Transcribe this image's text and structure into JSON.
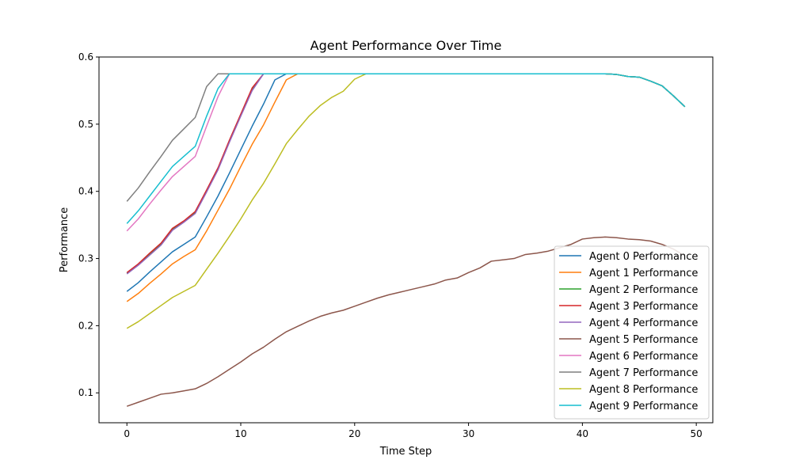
{
  "chart_data": {
    "type": "line",
    "title": "Agent Performance Over Time",
    "xlabel": "Time Step",
    "ylabel": "Performance",
    "xlim": [
      -2.45,
      51.45
    ],
    "ylim": [
      0.0555,
      0.6
    ],
    "xticks": [
      0,
      10,
      20,
      30,
      40,
      50
    ],
    "yticks": [
      0.1,
      0.2,
      0.3,
      0.4,
      0.5,
      0.6
    ],
    "xtick_labels": [
      "0",
      "10",
      "20",
      "30",
      "40",
      "50"
    ],
    "ytick_labels": [
      "0.1",
      "0.2",
      "0.3",
      "0.4",
      "0.5",
      "0.6"
    ],
    "grid": false,
    "legend_position": "lower-right",
    "x": [
      0,
      1,
      2,
      3,
      4,
      5,
      6,
      7,
      8,
      9,
      10,
      11,
      12,
      13,
      14,
      15,
      16,
      17,
      18,
      19,
      20,
      21,
      22,
      23,
      24,
      25,
      26,
      27,
      28,
      29,
      30,
      31,
      32,
      33,
      34,
      35,
      36,
      37,
      38,
      39,
      40,
      41,
      42,
      43,
      44,
      45,
      46,
      47,
      48,
      49
    ],
    "series": [
      {
        "name": "Agent 0 Performance",
        "color": "#1f77b4",
        "values": [
          0.251,
          0.264,
          0.28,
          0.295,
          0.31,
          0.321,
          0.332,
          0.362,
          0.393,
          0.427,
          0.462,
          0.497,
          0.53,
          0.566,
          0.575,
          0.575,
          0.575,
          0.575,
          0.575,
          0.575,
          0.575,
          0.575,
          0.575,
          0.575,
          0.575,
          0.575,
          0.575,
          0.575,
          0.575,
          0.575,
          0.575,
          0.575,
          0.575,
          0.575,
          0.575,
          0.575,
          0.575,
          0.575,
          0.575,
          0.575,
          0.575,
          0.575,
          0.575,
          0.574,
          0.571,
          0.57,
          0.564,
          0.557,
          0.542,
          0.526
        ]
      },
      {
        "name": "Agent 1 Performance",
        "color": "#ff7f0e",
        "values": [
          0.236,
          0.248,
          0.263,
          0.277,
          0.292,
          0.303,
          0.313,
          0.341,
          0.372,
          0.403,
          0.437,
          0.47,
          0.499,
          0.533,
          0.566,
          0.575,
          0.575,
          0.575,
          0.575,
          0.575,
          0.575,
          0.575,
          0.575,
          0.575,
          0.575,
          0.575,
          0.575,
          0.575,
          0.575,
          0.575,
          0.575,
          0.575,
          0.575,
          0.575,
          0.575,
          0.575,
          0.575,
          0.575,
          0.575,
          0.575,
          0.575,
          0.575,
          0.575,
          0.574,
          0.571,
          0.57,
          0.564,
          0.557,
          0.542,
          0.526
        ]
      },
      {
        "name": "Agent 2 Performance",
        "color": "#2ca02c",
        "values": [
          0.278,
          0.291,
          0.306,
          0.321,
          0.344,
          0.355,
          0.368,
          0.4,
          0.433,
          0.475,
          0.514,
          0.552,
          0.575,
          0.575,
          0.575,
          0.575,
          0.575,
          0.575,
          0.575,
          0.575,
          0.575,
          0.575,
          0.575,
          0.575,
          0.575,
          0.575,
          0.575,
          0.575,
          0.575,
          0.575,
          0.575,
          0.575,
          0.575,
          0.575,
          0.575,
          0.575,
          0.575,
          0.575,
          0.575,
          0.575,
          0.575,
          0.575,
          0.575,
          0.574,
          0.571,
          0.57,
          0.564,
          0.557,
          0.542,
          0.526
        ]
      },
      {
        "name": "Agent 3 Performance",
        "color": "#d62728",
        "values": [
          0.279,
          0.292,
          0.308,
          0.323,
          0.345,
          0.356,
          0.37,
          0.402,
          0.435,
          0.476,
          0.515,
          0.554,
          0.575,
          0.575,
          0.575,
          0.575,
          0.575,
          0.575,
          0.575,
          0.575,
          0.575,
          0.575,
          0.575,
          0.575,
          0.575,
          0.575,
          0.575,
          0.575,
          0.575,
          0.575,
          0.575,
          0.575,
          0.575,
          0.575,
          0.575,
          0.575,
          0.575,
          0.575,
          0.575,
          0.575,
          0.575,
          0.575,
          0.575,
          0.574,
          0.571,
          0.57,
          0.564,
          0.557,
          0.542,
          0.526
        ]
      },
      {
        "name": "Agent 4 Performance",
        "color": "#9467bd",
        "values": [
          0.277,
          0.29,
          0.305,
          0.32,
          0.342,
          0.354,
          0.367,
          0.399,
          0.432,
          0.473,
          0.512,
          0.55,
          0.575,
          0.575,
          0.575,
          0.575,
          0.575,
          0.575,
          0.575,
          0.575,
          0.575,
          0.575,
          0.575,
          0.575,
          0.575,
          0.575,
          0.575,
          0.575,
          0.575,
          0.575,
          0.575,
          0.575,
          0.575,
          0.575,
          0.575,
          0.575,
          0.575,
          0.575,
          0.575,
          0.575,
          0.575,
          0.575,
          0.575,
          0.574,
          0.571,
          0.57,
          0.564,
          0.557,
          0.542,
          0.526
        ]
      },
      {
        "name": "Agent 5 Performance",
        "color": "#8c564b",
        "values": [
          0.08,
          0.086,
          0.092,
          0.098,
          0.1,
          0.103,
          0.106,
          0.114,
          0.124,
          0.135,
          0.146,
          0.158,
          0.168,
          0.18,
          0.191,
          0.199,
          0.207,
          0.214,
          0.219,
          0.223,
          0.229,
          0.235,
          0.241,
          0.246,
          0.25,
          0.254,
          0.258,
          0.262,
          0.268,
          0.271,
          0.279,
          0.286,
          0.296,
          0.298,
          0.3,
          0.306,
          0.308,
          0.311,
          0.316,
          0.321,
          0.329,
          0.331,
          0.332,
          0.331,
          0.329,
          0.328,
          0.326,
          0.321,
          0.314,
          0.304
        ]
      },
      {
        "name": "Agent 6 Performance",
        "color": "#e377c2",
        "values": [
          0.341,
          0.359,
          0.381,
          0.402,
          0.422,
          0.437,
          0.452,
          0.497,
          0.541,
          0.575,
          0.575,
          0.575,
          0.575,
          0.575,
          0.575,
          0.575,
          0.575,
          0.575,
          0.575,
          0.575,
          0.575,
          0.575,
          0.575,
          0.575,
          0.575,
          0.575,
          0.575,
          0.575,
          0.575,
          0.575,
          0.575,
          0.575,
          0.575,
          0.575,
          0.575,
          0.575,
          0.575,
          0.575,
          0.575,
          0.575,
          0.575,
          0.575,
          0.575,
          0.574,
          0.571,
          0.57,
          0.564,
          0.557,
          0.542,
          0.526
        ]
      },
      {
        "name": "Agent 7 Performance",
        "color": "#7f7f7f",
        "values": [
          0.385,
          0.405,
          0.429,
          0.452,
          0.476,
          0.493,
          0.51,
          0.556,
          0.575,
          0.575,
          0.575,
          0.575,
          0.575,
          0.575,
          0.575,
          0.575,
          0.575,
          0.575,
          0.575,
          0.575,
          0.575,
          0.575,
          0.575,
          0.575,
          0.575,
          0.575,
          0.575,
          0.575,
          0.575,
          0.575,
          0.575,
          0.575,
          0.575,
          0.575,
          0.575,
          0.575,
          0.575,
          0.575,
          0.575,
          0.575,
          0.575,
          0.575,
          0.575,
          0.574,
          0.571,
          0.57,
          0.564,
          0.557,
          0.542,
          0.526
        ]
      },
      {
        "name": "Agent 8 Performance",
        "color": "#bcbd22",
        "values": [
          0.196,
          0.206,
          0.218,
          0.23,
          0.242,
          0.251,
          0.26,
          0.284,
          0.308,
          0.333,
          0.359,
          0.387,
          0.412,
          0.441,
          0.471,
          0.492,
          0.512,
          0.528,
          0.54,
          0.549,
          0.567,
          0.575,
          0.575,
          0.575,
          0.575,
          0.575,
          0.575,
          0.575,
          0.575,
          0.575,
          0.575,
          0.575,
          0.575,
          0.575,
          0.575,
          0.575,
          0.575,
          0.575,
          0.575,
          0.575,
          0.575,
          0.575,
          0.575,
          0.574,
          0.571,
          0.57,
          0.564,
          0.557,
          0.542,
          0.526
        ]
      },
      {
        "name": "Agent 9 Performance",
        "color": "#17becf",
        "values": [
          0.352,
          0.371,
          0.393,
          0.415,
          0.437,
          0.452,
          0.467,
          0.512,
          0.553,
          0.575,
          0.575,
          0.575,
          0.575,
          0.575,
          0.575,
          0.575,
          0.575,
          0.575,
          0.575,
          0.575,
          0.575,
          0.575,
          0.575,
          0.575,
          0.575,
          0.575,
          0.575,
          0.575,
          0.575,
          0.575,
          0.575,
          0.575,
          0.575,
          0.575,
          0.575,
          0.575,
          0.575,
          0.575,
          0.575,
          0.575,
          0.575,
          0.575,
          0.575,
          0.574,
          0.571,
          0.57,
          0.564,
          0.557,
          0.542,
          0.526
        ]
      }
    ]
  }
}
